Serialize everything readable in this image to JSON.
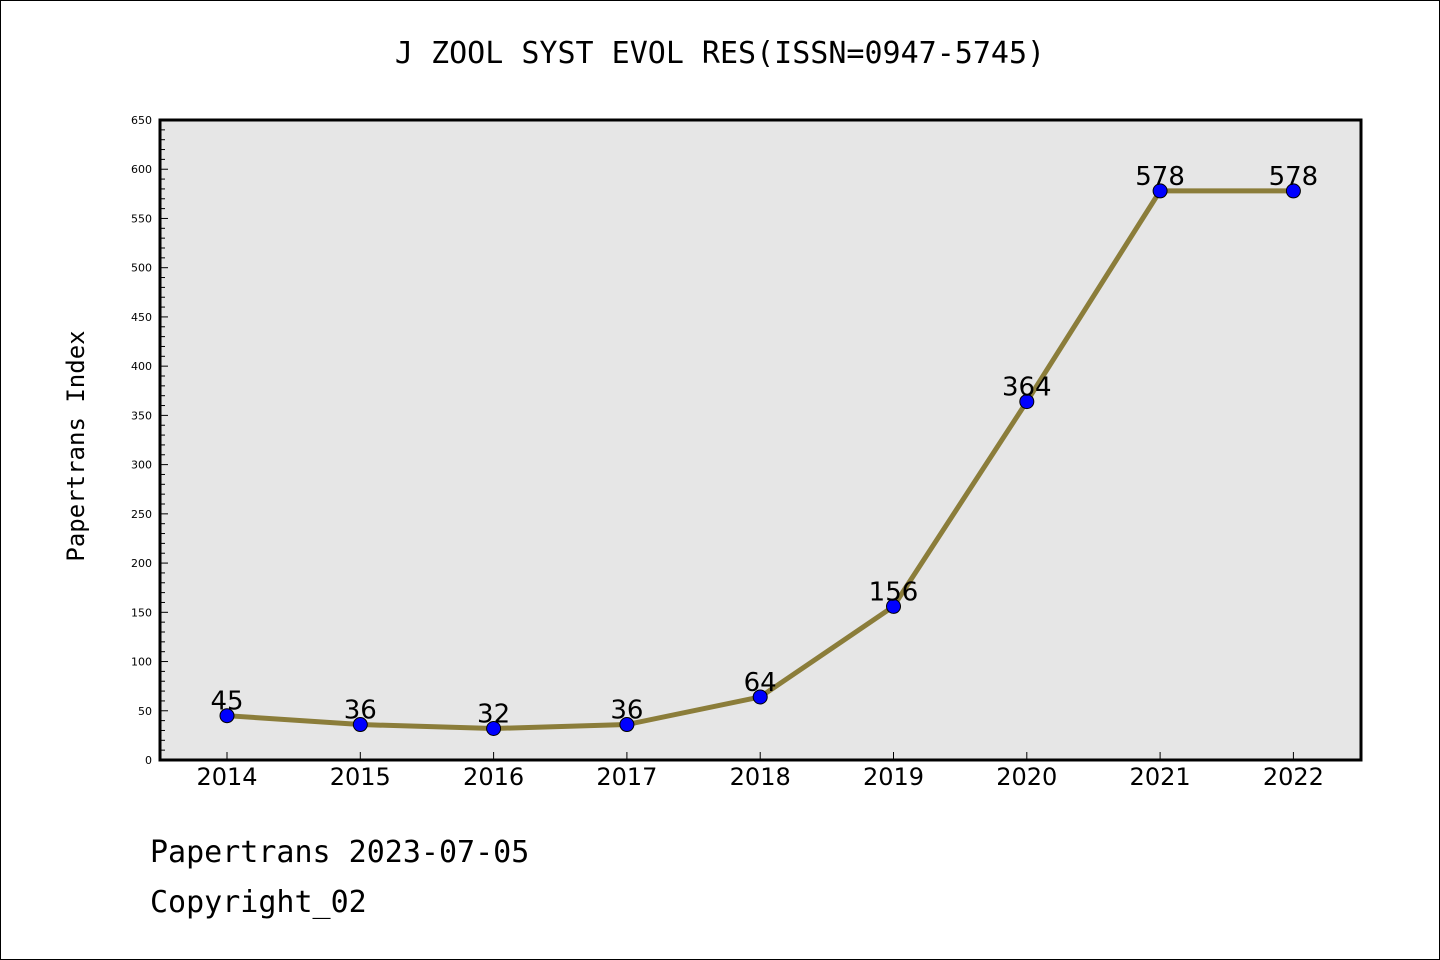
{
  "title": "J ZOOL SYST EVOL RES(ISSN=0947-5745)",
  "footer": {
    "date_line": "Papertrans 2023-07-05",
    "copyright": "Copyright_02"
  },
  "chart_data": {
    "type": "line",
    "title": "J ZOOL SYST EVOL RES(ISSN=0947-5745)",
    "xlabel": "",
    "ylabel": "Papertrans Index",
    "categories": [
      "2014",
      "2015",
      "2016",
      "2017",
      "2018",
      "2019",
      "2020",
      "2021",
      "2022"
    ],
    "values": [
      45,
      36,
      32,
      36,
      64,
      156,
      364,
      578,
      578
    ],
    "data_labels": [
      "45",
      "36",
      "32",
      "36",
      "64",
      "156",
      "364",
      "578",
      "578"
    ],
    "ylim": [
      0,
      650
    ],
    "yticks": [
      0,
      50,
      100,
      150,
      200,
      250,
      300,
      350,
      400,
      450,
      500,
      550,
      600,
      650
    ],
    "grid": false,
    "colors": {
      "line": "#8B7D3A",
      "marker": "#0000FF",
      "plot_background": "#E6E6E6"
    }
  }
}
